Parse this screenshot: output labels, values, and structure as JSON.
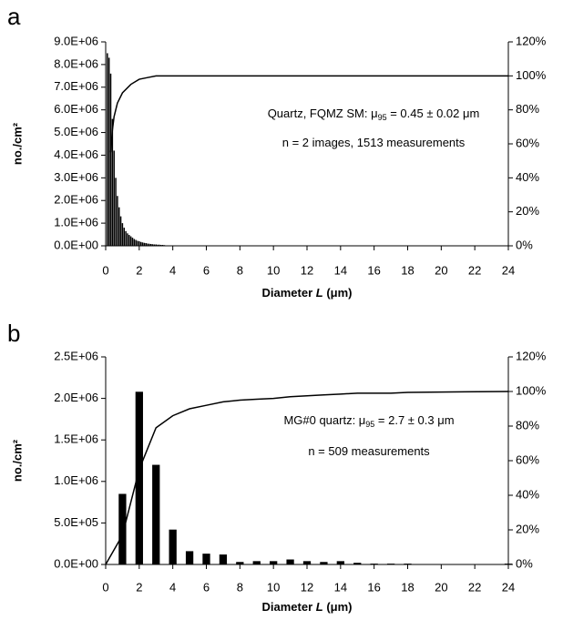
{
  "chart_data": [
    {
      "type": "bar",
      "title": "a",
      "y_label": "no./cm²",
      "x_label": [
        "Diameter ",
        "L",
        " (μm)"
      ],
      "annotations": [
        [
          "Quartz, FQMZ SM: μ",
          "95",
          " = 0.45 ± 0.02 μm"
        ],
        [
          "n = 2 images, 1513 measurements"
        ]
      ],
      "xlim": [
        0,
        24
      ],
      "xticks": [
        0,
        2,
        4,
        6,
        8,
        10,
        12,
        14,
        16,
        18,
        20,
        22,
        24
      ],
      "ylim": [
        0,
        9000000
      ],
      "yticks": [
        {
          "value": 0,
          "label": "0.0E+00"
        },
        {
          "value": 1000000,
          "label": "1.0E+06"
        },
        {
          "value": 2000000,
          "label": "2.0E+06"
        },
        {
          "value": 3000000,
          "label": "3.0E+06"
        },
        {
          "value": 4000000,
          "label": "4.0E+06"
        },
        {
          "value": 5000000,
          "label": "5.0E+06"
        },
        {
          "value": 6000000,
          "label": "6.0E+06"
        },
        {
          "value": 7000000,
          "label": "7.0E+06"
        },
        {
          "value": 8000000,
          "label": "8.0E+06"
        },
        {
          "value": 9000000,
          "label": "9.0E+06"
        }
      ],
      "y2lim": [
        0,
        120
      ],
      "y2ticks": [
        {
          "value": 0,
          "label": "0%"
        },
        {
          "value": 20,
          "label": "20%"
        },
        {
          "value": 40,
          "label": "40%"
        },
        {
          "value": 60,
          "label": "60%"
        },
        {
          "value": 80,
          "label": "80%"
        },
        {
          "value": 100,
          "label": "100%"
        },
        {
          "value": 120,
          "label": "120%"
        }
      ],
      "series": [
        {
          "type": "bar",
          "color": "#000000",
          "bar_width": 0.08,
          "x": [
            0.1,
            0.2,
            0.3,
            0.4,
            0.5,
            0.6,
            0.7,
            0.8,
            0.9,
            1.0,
            1.1,
            1.2,
            1.3,
            1.4,
            1.5,
            1.6,
            1.7,
            1.8,
            1.9,
            2.0,
            2.1,
            2.2,
            2.3,
            2.4,
            2.5,
            2.6,
            2.7,
            2.8,
            2.9,
            3.0,
            3.1,
            3.2,
            3.3,
            3.4,
            3.5
          ],
          "values": [
            8500000,
            8300000,
            7600000,
            5600000,
            4200000,
            3000000,
            2200000,
            1700000,
            1300000,
            1000000,
            800000,
            650000,
            550000,
            480000,
            420000,
            360000,
            300000,
            260000,
            220000,
            200000,
            170000,
            150000,
            130000,
            120000,
            100000,
            90000,
            80000,
            70000,
            60000,
            60000,
            50000,
            50000,
            40000,
            40000,
            30000
          ]
        },
        {
          "type": "line",
          "axis": "y2",
          "color": "#000000",
          "x": [
            0.3,
            0.4,
            0.5,
            0.7,
            1.0,
            1.5,
            2.0,
            2.5,
            3.0,
            24
          ],
          "values": [
            55,
            68,
            76,
            84,
            90,
            95,
            98,
            99,
            100,
            100
          ]
        }
      ]
    },
    {
      "type": "bar",
      "title": "b",
      "y_label": "no./cm²",
      "x_label": [
        "Diameter ",
        "L",
        " (μm)"
      ],
      "annotations": [
        [
          "MG#0 quartz: μ",
          "95",
          " = 2.7 ± 0.3 μm"
        ],
        [
          "n = 509 measurements"
        ]
      ],
      "xlim": [
        0,
        24
      ],
      "xticks": [
        0,
        2,
        4,
        6,
        8,
        10,
        12,
        14,
        16,
        18,
        20,
        22,
        24
      ],
      "ylim": [
        0,
        2500000
      ],
      "yticks": [
        {
          "value": 0,
          "label": "0.0E+00"
        },
        {
          "value": 500000,
          "label": "5.0E+05"
        },
        {
          "value": 1000000,
          "label": "1.0E+06"
        },
        {
          "value": 1500000,
          "label": "1.5E+06"
        },
        {
          "value": 2000000,
          "label": "2.0E+06"
        },
        {
          "value": 2500000,
          "label": "2.5E+06"
        }
      ],
      "y2lim": [
        0,
        120
      ],
      "y2ticks": [
        {
          "value": 0,
          "label": "0%"
        },
        {
          "value": 20,
          "label": "20%"
        },
        {
          "value": 40,
          "label": "40%"
        },
        {
          "value": 60,
          "label": "60%"
        },
        {
          "value": 80,
          "label": "80%"
        },
        {
          "value": 100,
          "label": "100%"
        },
        {
          "value": 120,
          "label": "120%"
        }
      ],
      "series": [
        {
          "type": "bar",
          "color": "#000000",
          "bar_width": 0.45,
          "x": [
            1,
            2,
            3,
            4,
            5,
            6,
            7,
            8,
            9,
            10,
            11,
            12,
            13,
            14,
            15,
            16,
            17,
            18,
            19,
            20,
            21,
            22,
            23,
            24
          ],
          "values": [
            850000,
            2080000,
            1200000,
            420000,
            160000,
            130000,
            120000,
            30000,
            40000,
            40000,
            60000,
            40000,
            30000,
            40000,
            20000,
            10000,
            10000,
            10000,
            0,
            0,
            0,
            0,
            0,
            10000
          ]
        },
        {
          "type": "line",
          "axis": "y2",
          "color": "#000000",
          "x": [
            0,
            1,
            2,
            3,
            4,
            5,
            6,
            7,
            8,
            9,
            10,
            11,
            12,
            13,
            14,
            15,
            16,
            17,
            18,
            24
          ],
          "values": [
            0,
            17,
            55,
            79,
            86,
            90,
            92,
            94,
            95,
            95.5,
            96,
            97,
            97.5,
            98,
            98.5,
            99,
            99,
            99,
            99.5,
            100
          ]
        }
      ]
    }
  ]
}
